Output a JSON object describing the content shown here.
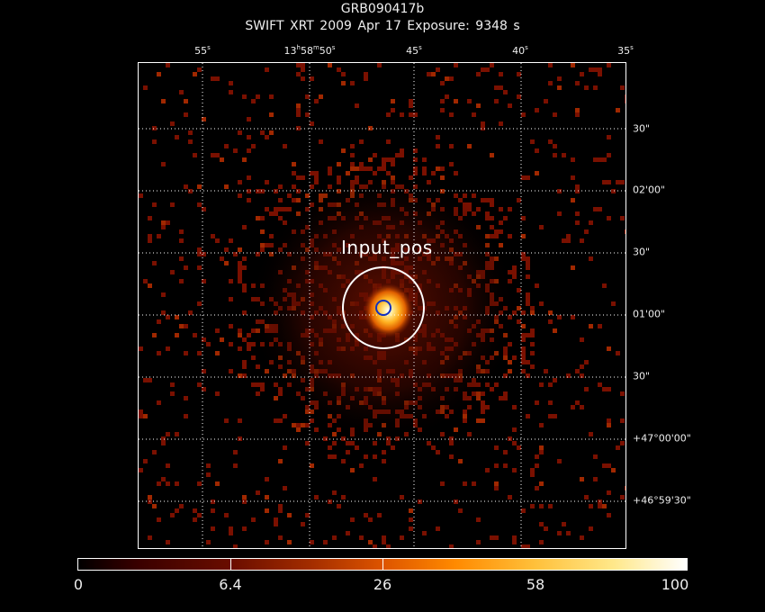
{
  "header": {
    "line1": "GRB090417b",
    "line2": "SWIFT XRT   2009 Apr 17    Exposure: 9348 s"
  },
  "ra_ticks": [
    {
      "h": "",
      "m": "",
      "s": "55",
      "unit": "s"
    },
    {
      "h": "13",
      "m": "58",
      "s": "50",
      "unit": "s",
      "full": true
    },
    {
      "h": "",
      "m": "",
      "s": "45",
      "unit": "s"
    },
    {
      "h": "",
      "m": "",
      "s": "40",
      "unit": "s"
    },
    {
      "h": "",
      "m": "",
      "s": "35",
      "unit": "s"
    }
  ],
  "dec_ticks": [
    "30\"",
    "02'00\"",
    "30\"",
    "01'00\"",
    "30\"",
    "+47°00'00\"",
    "+46°59'30\""
  ],
  "source": {
    "label": "Input_pos"
  },
  "colorbar": {
    "labels": [
      "0",
      "6.4",
      "26",
      "58",
      "100"
    ]
  },
  "colors": {
    "background": "#000000",
    "grid": "#ffffff",
    "source_circle": "#ffffff",
    "inner_circle": "#1030c0"
  }
}
